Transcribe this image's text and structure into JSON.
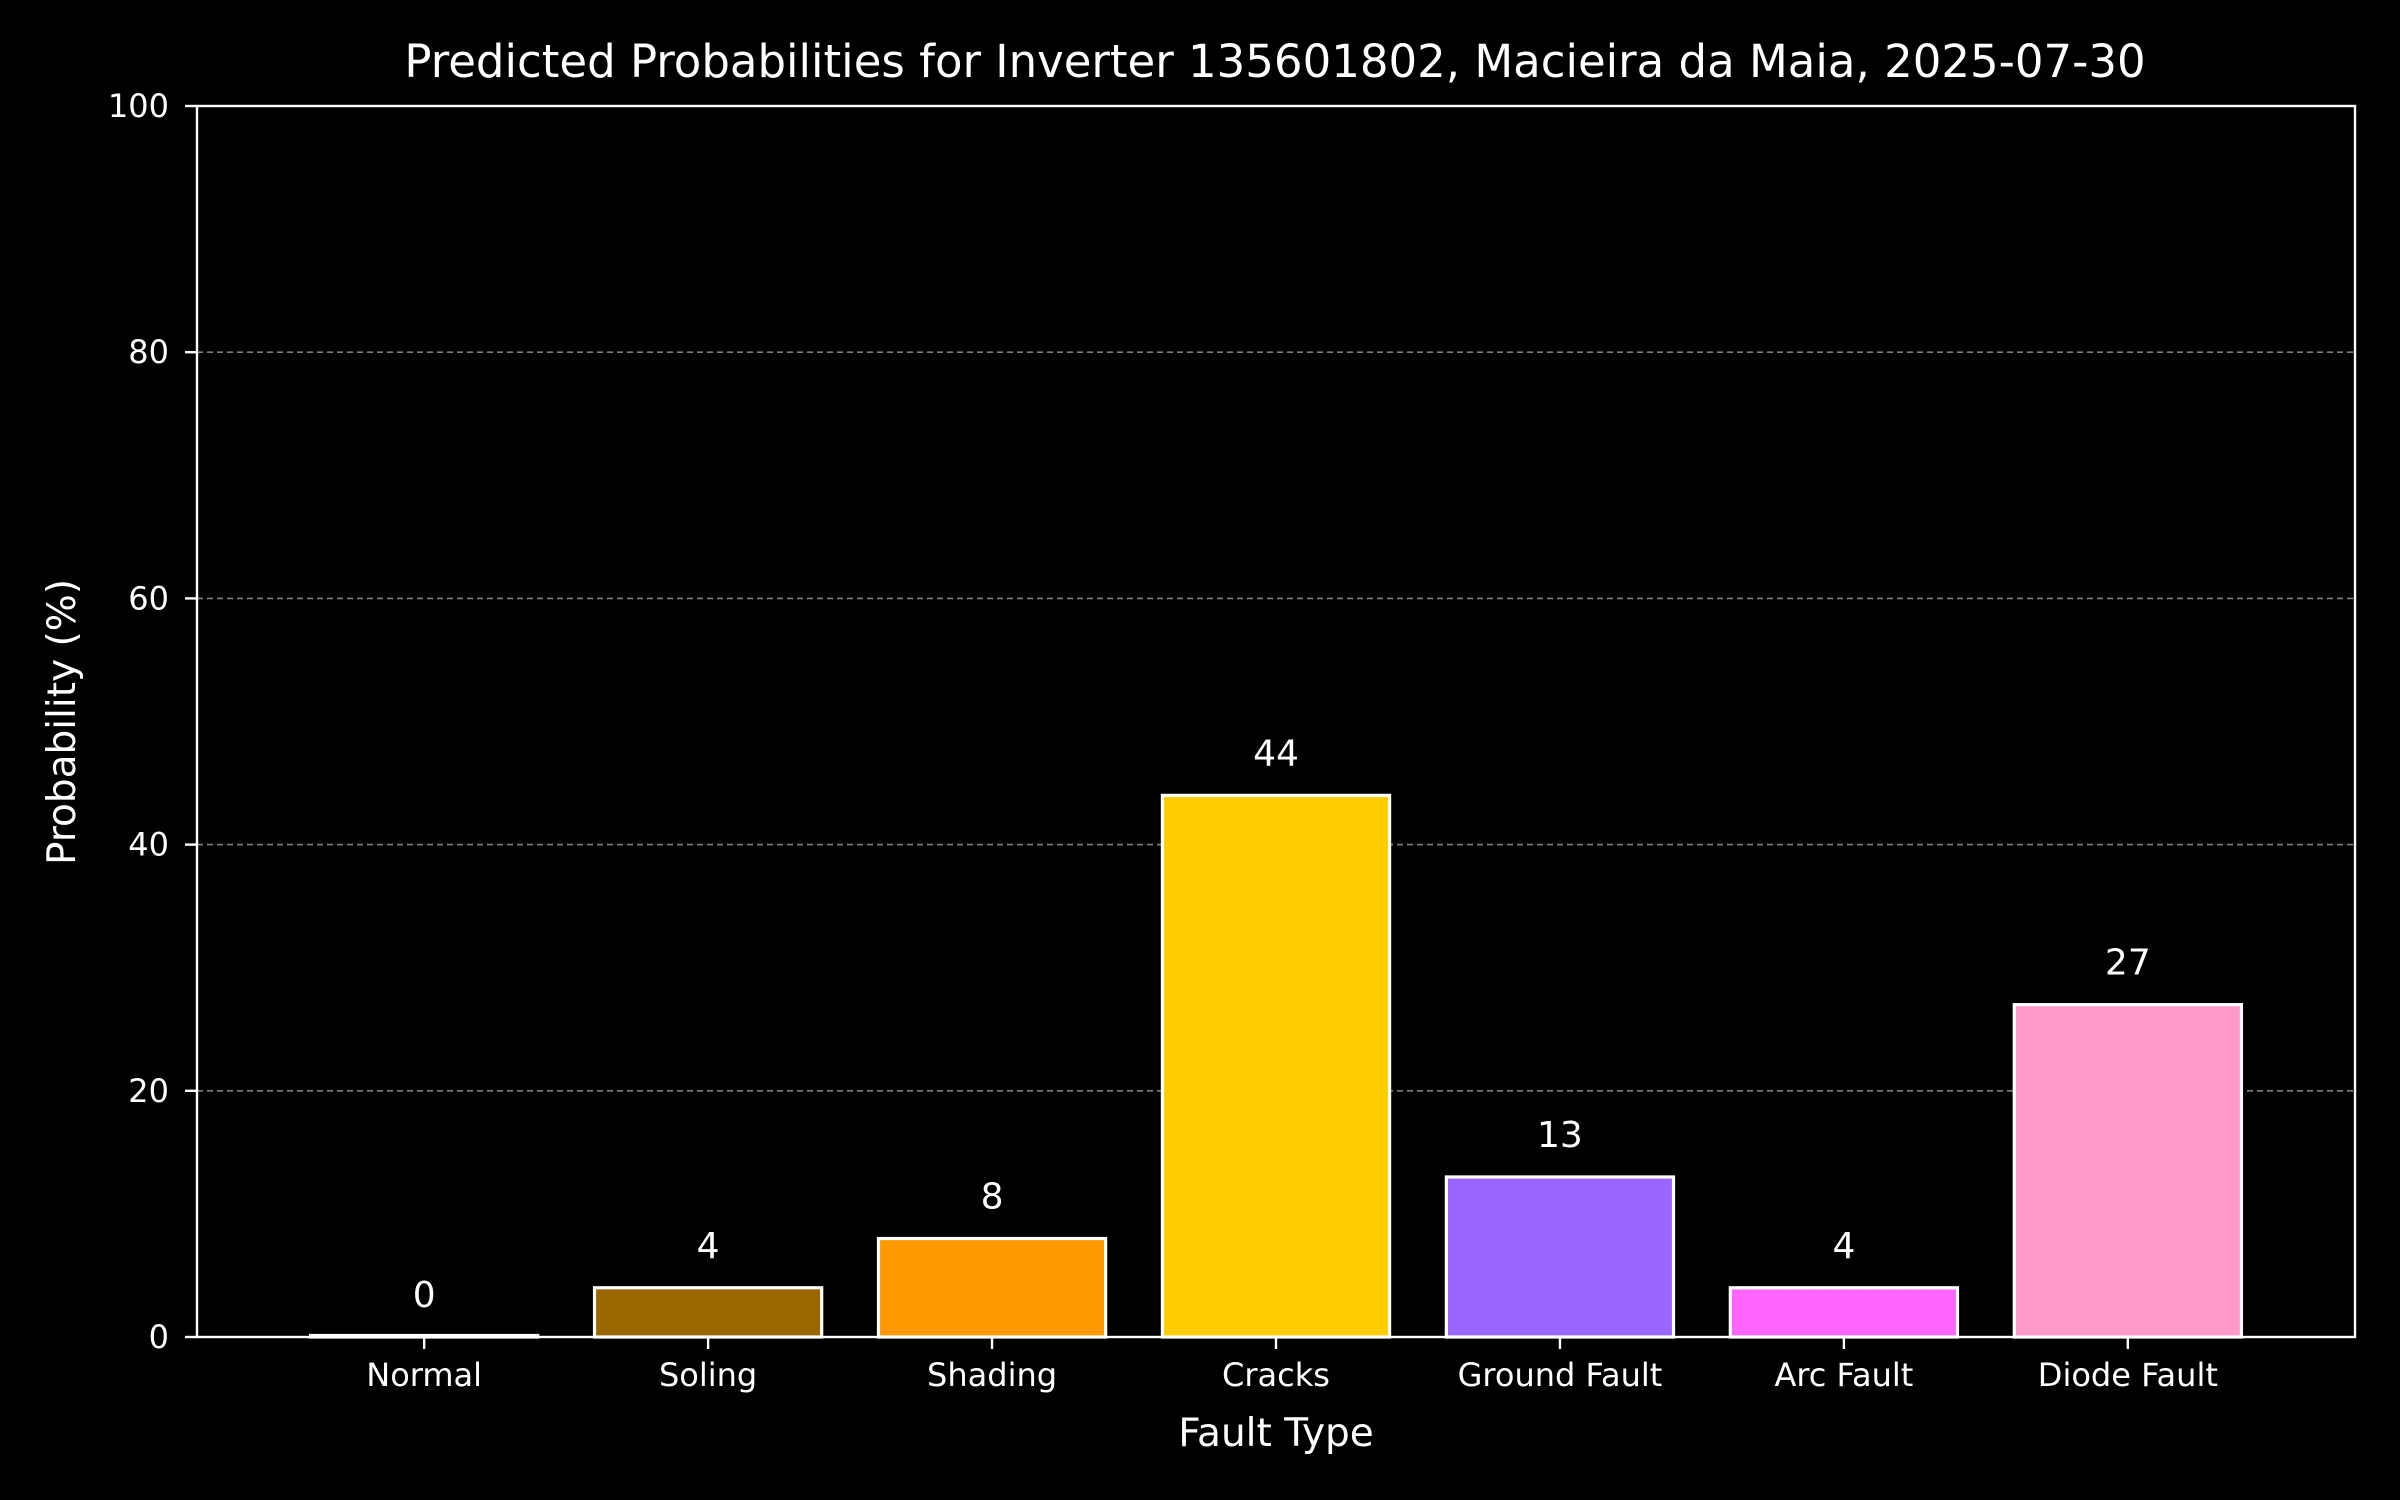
{
  "chart_data": {
    "type": "bar",
    "title": "Predicted Probabilities for Inverter 135601802, Macieira da Maia, 2025-07-30",
    "xlabel": "Fault Type",
    "ylabel": "Probability (%)",
    "ylim": [
      0,
      100
    ],
    "yticks": [
      0,
      20,
      40,
      60,
      80,
      100
    ],
    "grid": "horizontal dashed",
    "categories": [
      "Normal",
      "Soling",
      "Shading",
      "Cracks",
      "Ground Fault",
      "Arc Fault",
      "Diode Fault"
    ],
    "values": [
      0,
      4,
      8,
      44,
      13,
      4,
      27
    ],
    "data_labels": [
      "0",
      "4",
      "8",
      "44",
      "13",
      "4",
      "27"
    ],
    "colors": [
      "#1f77b4",
      "#996600",
      "#ff9900",
      "#ffcc00",
      "#9966ff",
      "#ff66ff",
      "#ff99c8"
    ],
    "background": "#000000",
    "text_color": "#ffffff"
  }
}
